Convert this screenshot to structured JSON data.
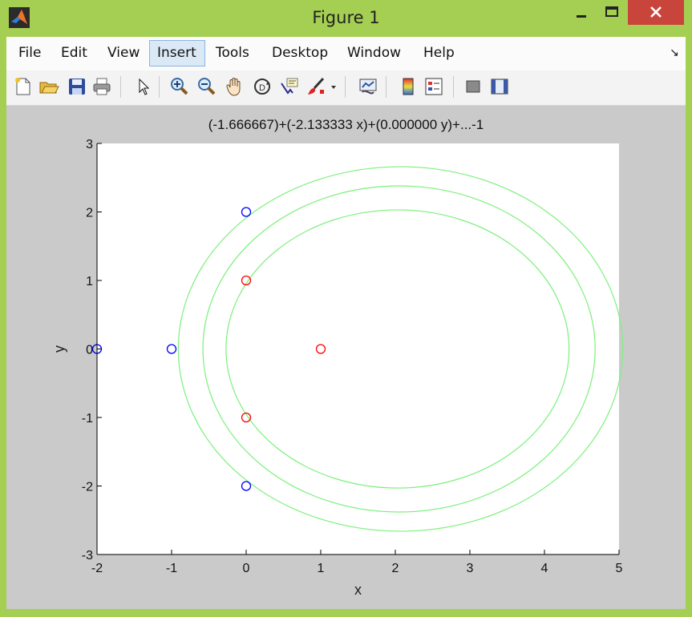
{
  "window": {
    "title": "Figure 1",
    "controls": {
      "minimize": "minimize",
      "maximize": "maximize",
      "close": "close"
    }
  },
  "menubar": {
    "items": [
      {
        "label": "File"
      },
      {
        "label": "Edit"
      },
      {
        "label": "View"
      },
      {
        "label": "Insert",
        "active": true
      },
      {
        "label": "Tools"
      },
      {
        "label": "Desktop"
      },
      {
        "label": "Window"
      },
      {
        "label": "Help"
      }
    ],
    "dock_arrow": "↘"
  },
  "toolbar": {
    "buttons": [
      {
        "icon": "new-figure-icon"
      },
      {
        "icon": "open-file-icon"
      },
      {
        "icon": "save-icon"
      },
      {
        "icon": "print-icon"
      },
      {
        "icon": "pointer-icon"
      },
      {
        "icon": "zoom-in-icon"
      },
      {
        "icon": "zoom-out-icon"
      },
      {
        "icon": "pan-hand-icon"
      },
      {
        "icon": "rotate-3d-icon"
      },
      {
        "icon": "data-cursor-icon"
      },
      {
        "icon": "brush-icon"
      },
      {
        "icon": "link-plot-icon"
      },
      {
        "icon": "colorbar-icon"
      },
      {
        "icon": "legend-icon"
      },
      {
        "icon": "hide-plot-tools-icon"
      },
      {
        "icon": "show-plot-tools-icon"
      }
    ]
  },
  "chart_data": {
    "type": "scatter",
    "title": "(-1.666667)+(-2.133333 x)+(0.000000 y)+...-1",
    "xlabel": "x",
    "ylabel": "y",
    "xlim": [
      -2,
      5
    ],
    "ylim": [
      -3,
      3
    ],
    "xticks": [
      "-2",
      "-1",
      "0",
      "1",
      "2",
      "3",
      "4",
      "5"
    ],
    "yticks": [
      "-3",
      "-2",
      "-1",
      "0",
      "1",
      "2",
      "3"
    ],
    "series": [
      {
        "marker": "circle",
        "color": "#0000ff",
        "points": [
          [
            0,
            2
          ],
          [
            -2,
            0
          ],
          [
            -1,
            0
          ],
          [
            0,
            -2
          ]
        ]
      },
      {
        "marker": "circle",
        "color": "#ff0000",
        "points": [
          [
            0,
            1
          ],
          [
            1,
            0
          ],
          [
            0,
            -1
          ]
        ]
      }
    ],
    "contours": {
      "color": "#7cf07c",
      "ellipses": [
        {
          "cx": 2.07,
          "cy": 0,
          "rx": 2.98,
          "ry": 2.66
        },
        {
          "cx": 2.05,
          "cy": 0,
          "rx": 2.63,
          "ry": 2.38
        },
        {
          "cx": 2.03,
          "cy": 0,
          "rx": 2.3,
          "ry": 2.03
        }
      ]
    }
  }
}
